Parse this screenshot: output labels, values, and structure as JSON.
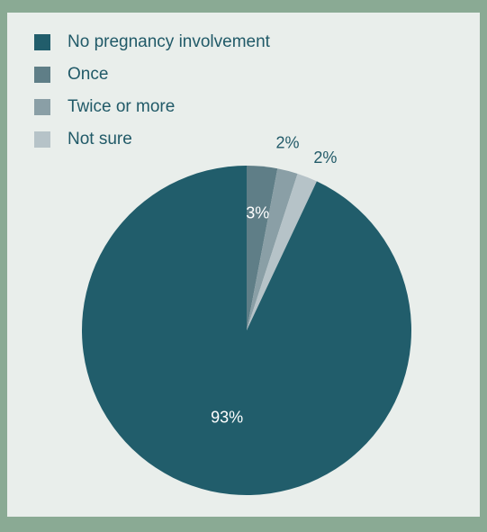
{
  "chart_data": {
    "type": "pie",
    "categories": [
      "No pregnancy involvement",
      "Once",
      "Twice or more",
      "Not sure"
    ],
    "values": [
      93,
      3,
      2,
      2
    ],
    "labels": [
      "93%",
      "3%",
      "2%",
      "2%"
    ],
    "colors": [
      "#215d6b",
      "#5f7e87",
      "#8a9fa6",
      "#b6c3c8"
    ],
    "legend_position": "top-left"
  }
}
